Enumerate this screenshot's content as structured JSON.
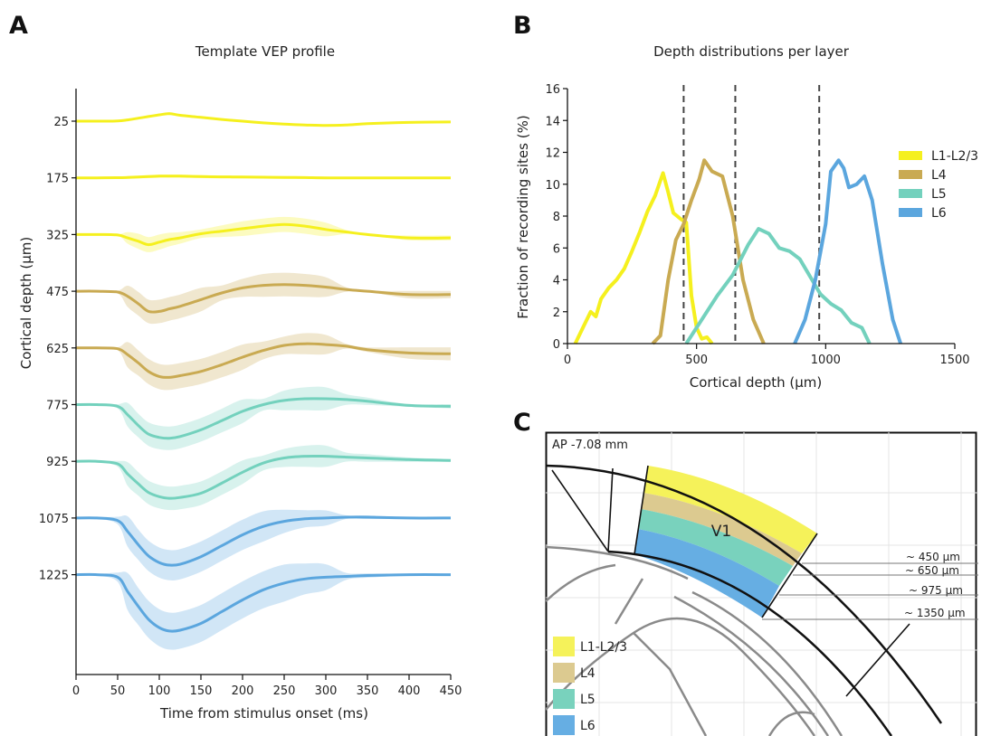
{
  "colors": {
    "l23": "#f5f01e",
    "l4": "#c9aa52",
    "l5": "#73d1bd",
    "l6": "#5ba6de",
    "axis": "#111111",
    "dash": "#444444"
  },
  "panels": {
    "A": {
      "letter": "A",
      "title": "Template VEP profile"
    },
    "B": {
      "letter": "B",
      "title": "Depth distributions per layer"
    },
    "C": {
      "letter": "C"
    }
  },
  "chart_data": [
    {
      "type": "line",
      "title": "Template VEP profile",
      "xlabel": "Time from stimulus onset (ms)",
      "ylabel": "Cortical depth (µm)",
      "xlim": [
        0,
        450
      ],
      "xticks": [
        0,
        50,
        100,
        150,
        200,
        250,
        300,
        350,
        400,
        450
      ],
      "depths": [
        "25",
        "175",
        "325",
        "475",
        "625",
        "775",
        "925",
        "1075",
        "1225"
      ],
      "time": [
        0,
        25,
        50,
        62,
        75,
        87,
        100,
        112,
        125,
        150,
        175,
        200,
        225,
        250,
        275,
        300,
        325,
        350,
        400,
        450
      ],
      "series": [
        {
          "depth": "25",
          "layer": "l23",
          "band": 0.05,
          "values": [
            0,
            0,
            0.02,
            0.15,
            0.35,
            0.55,
            0.75,
            0.9,
            0.7,
            0.45,
            0.2,
            0.0,
            -0.2,
            -0.35,
            -0.45,
            -0.5,
            -0.45,
            -0.3,
            -0.15,
            -0.1
          ]
        },
        {
          "depth": "175",
          "layer": "l23",
          "band": 0.3,
          "values": [
            0,
            0,
            0.02,
            0.05,
            0.1,
            0.15,
            0.2,
            0.2,
            0.2,
            0.15,
            0.12,
            0.1,
            0.08,
            0.05,
            0.03,
            0,
            0,
            0,
            0,
            0
          ]
        },
        {
          "depth": "325",
          "layer": "l23",
          "band": 0.9,
          "values": [
            0,
            0,
            -0.05,
            -0.4,
            -0.8,
            -1.2,
            -0.9,
            -0.6,
            -0.4,
            0.1,
            0.4,
            0.7,
            1.0,
            1.2,
            1.0,
            0.6,
            0.3,
            0.0,
            -0.4,
            -0.4
          ]
        },
        {
          "depth": "475",
          "layer": "l4",
          "band": 1.4,
          "values": [
            0,
            0,
            -0.1,
            -0.6,
            -1.5,
            -2.4,
            -2.4,
            -2.1,
            -1.8,
            -1.0,
            -0.2,
            0.4,
            0.7,
            0.8,
            0.7,
            0.5,
            0.2,
            0.0,
            -0.4,
            -0.4
          ]
        },
        {
          "depth": "625",
          "layer": "l4",
          "band": 1.5,
          "values": [
            0,
            0,
            -0.1,
            -0.8,
            -1.8,
            -2.8,
            -3.4,
            -3.5,
            -3.3,
            -2.8,
            -2.0,
            -1.1,
            -0.3,
            0.3,
            0.5,
            0.4,
            0.2,
            -0.2,
            -0.6,
            -0.7
          ]
        },
        {
          "depth": "775",
          "layer": "l5",
          "band": 1.4,
          "values": [
            0,
            0,
            -0.2,
            -1.2,
            -2.5,
            -3.5,
            -3.9,
            -4.0,
            -3.8,
            -3.0,
            -1.9,
            -0.8,
            0.0,
            0.5,
            0.7,
            0.7,
            0.6,
            0.4,
            -0.1,
            -0.2
          ]
        },
        {
          "depth": "925",
          "layer": "l5",
          "band": 1.4,
          "values": [
            0,
            0,
            -0.3,
            -1.5,
            -2.7,
            -3.7,
            -4.2,
            -4.4,
            -4.3,
            -3.8,
            -2.6,
            -1.3,
            -0.2,
            0.4,
            0.6,
            0.6,
            0.5,
            0.4,
            0.2,
            0.1
          ]
        },
        {
          "depth": "1075",
          "layer": "l6",
          "band": 1.8,
          "values": [
            0,
            0,
            -0.3,
            -1.6,
            -3.2,
            -4.5,
            -5.3,
            -5.6,
            -5.5,
            -4.6,
            -3.3,
            -2.0,
            -1.0,
            -0.4,
            -0.1,
            0.0,
            0.1,
            0.1,
            0.0,
            0.0
          ]
        },
        {
          "depth": "1225",
          "layer": "l6",
          "band": 2.2,
          "values": [
            0,
            0,
            -0.3,
            -2.0,
            -3.8,
            -5.3,
            -6.3,
            -6.7,
            -6.6,
            -5.8,
            -4.4,
            -3.0,
            -1.8,
            -1.0,
            -0.5,
            -0.3,
            -0.2,
            -0.1,
            0.0,
            0.0
          ]
        }
      ]
    },
    {
      "type": "line",
      "title": "Depth distributions per layer",
      "xlabel": "Cortical depth (µm)",
      "ylabel": "Fraction of recording sites (%)",
      "xlim": [
        0,
        1500
      ],
      "ylim": [
        0,
        16
      ],
      "xticks": [
        0,
        500,
        1000,
        1500
      ],
      "yticks": [
        0,
        2,
        4,
        6,
        8,
        10,
        12,
        14,
        16
      ],
      "vlines": [
        450,
        650,
        975
      ],
      "legend_position": "right",
      "series": [
        {
          "name": "L1-L2/3",
          "layer": "l23",
          "x": [
            30,
            60,
            90,
            110,
            130,
            160,
            190,
            220,
            250,
            280,
            310,
            340,
            370,
            390,
            410,
            440,
            460,
            480,
            500,
            520,
            540,
            560
          ],
          "y": [
            0,
            1,
            2,
            1.7,
            2.8,
            3.5,
            4,
            4.7,
            5.8,
            7,
            8.3,
            9.3,
            10.7,
            9.5,
            8.2,
            7.8,
            7.6,
            3,
            1,
            0.3,
            0.4,
            0
          ]
        },
        {
          "name": "L4",
          "layer": "l4",
          "x": [
            330,
            360,
            390,
            420,
            450,
            480,
            510,
            530,
            560,
            600,
            640,
            680,
            720,
            760
          ],
          "y": [
            0,
            0.5,
            4,
            6.5,
            7.5,
            9,
            10.3,
            11.5,
            10.8,
            10.5,
            8,
            4,
            1.5,
            0
          ]
        },
        {
          "name": "L5",
          "layer": "l5",
          "x": [
            460,
            520,
            580,
            640,
            700,
            740,
            780,
            820,
            860,
            900,
            940,
            980,
            1020,
            1060,
            1100,
            1140,
            1170
          ],
          "y": [
            0,
            1.5,
            3,
            4.3,
            6.2,
            7.2,
            6.9,
            6,
            5.8,
            5.3,
            4.2,
            3.1,
            2.5,
            2.1,
            1.3,
            1.0,
            0
          ]
        },
        {
          "name": "L6",
          "layer": "l6",
          "x": [
            880,
            920,
            960,
            1000,
            1020,
            1050,
            1070,
            1090,
            1120,
            1150,
            1180,
            1220,
            1260,
            1290
          ],
          "y": [
            0,
            1.5,
            4,
            7.5,
            10.8,
            11.5,
            11,
            9.8,
            10,
            10.5,
            9,
            5,
            1.5,
            0
          ]
        }
      ]
    }
  ],
  "diagram": {
    "section_label": "AP -7.08 mm",
    "region_label": "V1",
    "depth_markers": [
      "~ 450 µm",
      "~ 650 µm",
      "~ 975 µm",
      "~ 1350 µm"
    ],
    "legend": [
      {
        "label": "L1-L2/3",
        "color": "#f5f25a"
      },
      {
        "label": "L4",
        "color": "#dcca90"
      },
      {
        "label": "L5",
        "color": "#79d2bd"
      },
      {
        "label": "L6",
        "color": "#66aee3"
      }
    ]
  }
}
